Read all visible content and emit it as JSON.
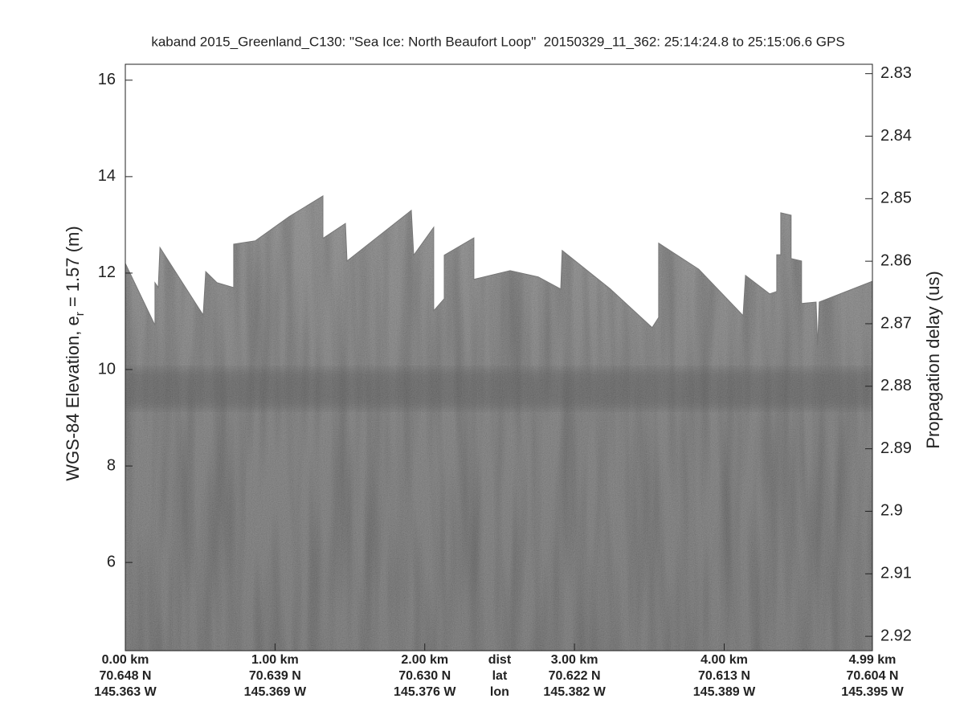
{
  "chart_data": {
    "type": "echogram",
    "title": "kaband 2015_Greenland_C130: \"Sea Ice: North Beaufort Loop\"  20150329_11_362: 25:14:24.8 to 25:15:06.6 GPS",
    "ylabel": {
      "before": "WGS-84 Elevation, e",
      "sub": "r",
      "after": " = 1.57 (m)"
    },
    "y2label": "Propagation delay (us)",
    "xlim": [
      0,
      4.99
    ],
    "ylim": [
      4.17,
      16.33
    ],
    "yticks": [
      6,
      8,
      10,
      12,
      14,
      16
    ],
    "y2lim": [
      2.9223,
      2.8285
    ],
    "y2ticks": [
      2.83,
      2.84,
      2.85,
      2.86,
      2.87,
      2.88,
      2.89,
      2.9,
      2.91,
      2.92
    ],
    "xticks": [
      {
        "value": 0,
        "label": "0.00 km"
      },
      {
        "value": 1,
        "label": "1.00 km"
      },
      {
        "value": 2,
        "label": "2.00 km"
      },
      {
        "value": 3,
        "label": "3.00 km"
      },
      {
        "value": 4,
        "label": "4.00 km"
      },
      {
        "value": 4.99,
        "label": "4.99 km"
      }
    ],
    "xtick_lat": [
      "70.648 N",
      "70.639 N",
      "70.630 N",
      "70.622 N",
      "70.613 N",
      "70.604 N"
    ],
    "xtick_lon": [
      "145.363 W",
      "145.369 W",
      "145.376 W",
      "145.382 W",
      "145.389 W",
      "145.395 W"
    ],
    "xtick_row_labels": [
      "dist",
      "lat",
      "lon"
    ],
    "surface": {
      "x": [
        0,
        0.198,
        0.198,
        0.22,
        0.231,
        0.52,
        0.537,
        0.612,
        0.724,
        0.724,
        0.869,
        1.094,
        1.32,
        1.32,
        1.47,
        1.481,
        1.91,
        1.926,
        2.06,
        2.06,
        2.13,
        2.13,
        2.328,
        2.328,
        2.57,
        2.758,
        2.908,
        2.918,
        3.24,
        3.519,
        3.562,
        3.562,
        3.83,
        4.126,
        4.142,
        4.303,
        4.351,
        4.351,
        4.378,
        4.378,
        4.447,
        4.447,
        4.517,
        4.517,
        4.614,
        4.624,
        4.635,
        4.99
      ],
      "y": [
        12.2,
        10.92,
        11.8,
        11.7,
        12.53,
        11.13,
        12.03,
        11.8,
        11.7,
        12.6,
        12.67,
        13.17,
        13.6,
        12.72,
        13.03,
        12.25,
        13.3,
        12.37,
        12.95,
        11.22,
        11.47,
        12.37,
        12.73,
        11.87,
        12.05,
        11.92,
        11.67,
        12.47,
        11.67,
        10.87,
        11.08,
        12.62,
        12.08,
        11.12,
        11.95,
        11.57,
        11.62,
        12.38,
        12.38,
        13.25,
        13.2,
        12.3,
        12.25,
        11.37,
        11.4,
        10.5,
        11.4,
        11.83
      ]
    }
  }
}
